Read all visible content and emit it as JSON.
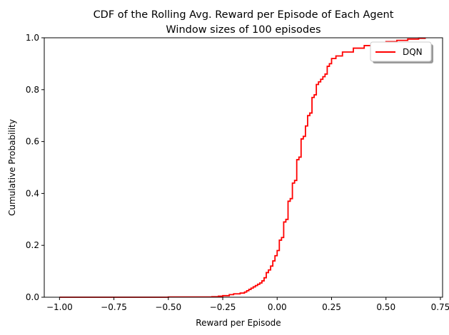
{
  "chart_data": {
    "type": "line",
    "title": "CDF of the Rolling Avg. Reward per Episode of Each Agent",
    "subtitle": "Window sizes of 100 episodes",
    "xlabel": "Reward per Episode",
    "ylabel": "Cumulative Probability",
    "xlim": [
      -1.07,
      0.76
    ],
    "ylim": [
      0,
      1
    ],
    "xticks": [
      -1.0,
      -0.75,
      -0.5,
      -0.25,
      0.0,
      0.25,
      0.5,
      0.75
    ],
    "xtick_labels": [
      "−1.00",
      "−0.75",
      "−0.50",
      "−0.25",
      "0.00",
      "0.25",
      "0.50",
      "0.75"
    ],
    "yticks": [
      0.0,
      0.2,
      0.4,
      0.6,
      0.8,
      1.0
    ],
    "ytick_labels": [
      "0.0",
      "0.2",
      "0.4",
      "0.6",
      "0.8",
      "1.0"
    ],
    "grid": false,
    "legend_placement": "top-right",
    "series": [
      {
        "name": "DQN",
        "color": "#ff0000",
        "step": true,
        "x": [
          -1.0,
          -0.75,
          -0.5,
          -0.4,
          -0.3,
          -0.27,
          -0.25,
          -0.22,
          -0.2,
          -0.17,
          -0.15,
          -0.14,
          -0.13,
          -0.12,
          -0.11,
          -0.1,
          -0.09,
          -0.08,
          -0.07,
          -0.06,
          -0.05,
          -0.04,
          -0.03,
          -0.02,
          -0.01,
          0.0,
          0.01,
          0.02,
          0.03,
          0.04,
          0.05,
          0.06,
          0.07,
          0.08,
          0.09,
          0.1,
          0.11,
          0.12,
          0.13,
          0.14,
          0.15,
          0.16,
          0.17,
          0.18,
          0.19,
          0.2,
          0.21,
          0.22,
          0.23,
          0.24,
          0.25,
          0.27,
          0.3,
          0.35,
          0.4,
          0.45,
          0.5,
          0.55,
          0.6,
          0.65,
          0.68
        ],
        "y": [
          0.0,
          0.0,
          0.001,
          0.001,
          0.002,
          0.004,
          0.006,
          0.01,
          0.013,
          0.016,
          0.02,
          0.025,
          0.03,
          0.035,
          0.04,
          0.045,
          0.05,
          0.055,
          0.063,
          0.075,
          0.095,
          0.105,
          0.12,
          0.14,
          0.16,
          0.18,
          0.22,
          0.23,
          0.29,
          0.3,
          0.37,
          0.38,
          0.44,
          0.45,
          0.53,
          0.54,
          0.61,
          0.62,
          0.66,
          0.7,
          0.71,
          0.77,
          0.78,
          0.82,
          0.83,
          0.84,
          0.85,
          0.86,
          0.89,
          0.9,
          0.92,
          0.93,
          0.945,
          0.96,
          0.97,
          0.977,
          0.985,
          0.99,
          0.995,
          0.998,
          1.0
        ]
      }
    ]
  }
}
